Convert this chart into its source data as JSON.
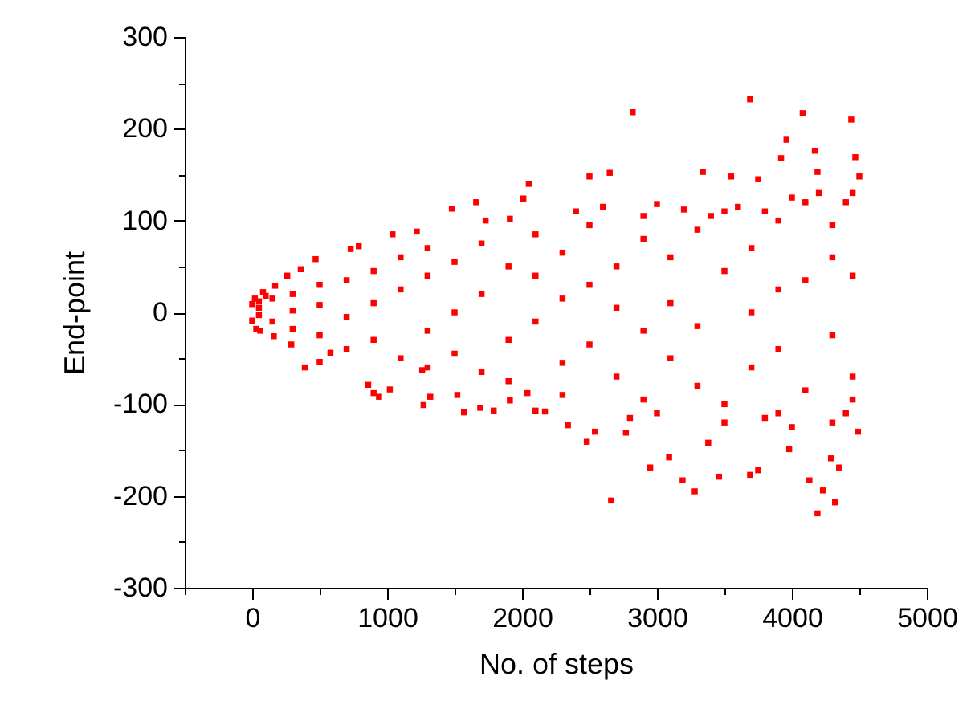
{
  "chart_data": {
    "type": "scatter",
    "xlabel": "No. of steps",
    "ylabel": "End-point",
    "marker": "square",
    "grid": false,
    "legend": false,
    "xlim": [
      -500,
      5000
    ],
    "ylim": [
      -300,
      300
    ],
    "xticks": [
      {
        "value": -500,
        "label": null
      },
      0,
      {
        "value": 500,
        "label": null
      },
      1000,
      {
        "value": 1500,
        "label": null
      },
      2000,
      {
        "value": 2500,
        "label": null
      },
      3000,
      {
        "value": 3500,
        "label": null
      },
      4000,
      {
        "value": 4500,
        "label": null
      },
      5000
    ],
    "yticks": [
      -300,
      {
        "value": -250,
        "label": null
      },
      -200,
      {
        "value": -150,
        "label": null
      },
      -100,
      {
        "value": -50,
        "label": null
      },
      0,
      {
        "value": 50,
        "label": null
      },
      100,
      {
        "value": 150,
        "label": null
      },
      200,
      {
        "value": 250,
        "label": null
      },
      300
    ],
    "series": [
      {
        "color": "#ff0000",
        "x": [
          3690,
          4080,
          4440,
          2820,
          3960,
          3920,
          4170,
          4470,
          2500,
          2650,
          3340,
          3550,
          3750,
          4190,
          4500,
          2660,
          4190,
          4320,
          4230,
          3280,
          3190,
          2950,
          3460,
          3690,
          3750,
          4130,
          4350,
          3090,
          3380,
          2480,
          2340,
          2540,
          2770,
          4290,
          4490,
          3980,
          2050,
          2010,
          1660,
          1480,
          1910,
          1730,
          1040,
          1220,
          790,
          730,
          470,
          360,
          260,
          170,
          80,
          0,
          0,
          390,
          500,
          290,
          160,
          900,
          940,
          1020,
          1270,
          1320,
          1570,
          1520,
          1690,
          1790,
          2100,
          2170,
          2040,
          1910,
          1260,
          860,
          580,
          20,
          30,
          60,
          100,
          50,
          50,
          50,
          150,
          150,
          300,
          300,
          300,
          500,
          500,
          500,
          700,
          700,
          700,
          900,
          900,
          900,
          1100,
          1100,
          1100,
          1300,
          1300,
          1300,
          1300,
          1500,
          1500,
          1500,
          1700,
          1700,
          1700,
          1900,
          1900,
          1900,
          2100,
          2100,
          2100,
          2300,
          2300,
          2300,
          2300,
          2500,
          2500,
          2500,
          2700,
          2700,
          2700,
          2900,
          2900,
          2900,
          2900,
          3100,
          3100,
          3100,
          3300,
          3300,
          3300,
          3500,
          3500,
          3500,
          3700,
          3700,
          3700,
          3900,
          3900,
          3900,
          3900,
          4100,
          4100,
          4100,
          4300,
          4300,
          4300,
          4300,
          4450,
          4450,
          4450,
          4450,
          2400,
          2600,
          3000,
          3200,
          3400,
          3600,
          3800,
          4000,
          4200,
          4400,
          2800,
          3000,
          3500,
          3800,
          4000,
          4400
        ],
        "values": [
          232,
          217,
          210,
          218,
          188,
          168,
          176,
          169,
          148,
          152,
          153,
          148,
          145,
          153,
          148,
          -205,
          -219,
          -207,
          -194,
          -195,
          -183,
          -169,
          -179,
          -177,
          -172,
          -183,
          -169,
          -158,
          -142,
          -141,
          -123,
          -130,
          -131,
          -159,
          -130,
          -149,
          140,
          124,
          120,
          113,
          102,
          100,
          85,
          88,
          72,
          69,
          58,
          47,
          40,
          29,
          22,
          9,
          -9,
          -60,
          -54,
          -35,
          -26,
          -88,
          -92,
          -84,
          -101,
          -92,
          -109,
          -90,
          -104,
          -107,
          -107,
          -108,
          -88,
          -96,
          -63,
          -79,
          -44,
          15,
          -18,
          -20,
          18,
          5,
          -3,
          12,
          -10,
          15,
          20,
          -18,
          2,
          30,
          -25,
          8,
          -40,
          35,
          -5,
          45,
          -30,
          10,
          -50,
          25,
          60,
          40,
          -20,
          -60,
          70,
          0,
          55,
          -45,
          75,
          -65,
          20,
          -30,
          50,
          -75,
          85,
          -10,
          40,
          -55,
          65,
          15,
          -90,
          95,
          -35,
          30,
          -70,
          50,
          5,
          80,
          -95,
          -20,
          105,
          60,
          -50,
          10,
          -80,
          90,
          -15,
          45,
          -100,
          110,
          -60,
          70,
          0,
          100,
          -40,
          25,
          -110,
          -85,
          120,
          35,
          60,
          -25,
          -120,
          95,
          -70,
          40,
          130,
          -95,
          110,
          115,
          118,
          112,
          105,
          115,
          110,
          125,
          130,
          120,
          -115,
          -110,
          -120,
          -115,
          -125,
          -110
        ]
      }
    ]
  }
}
